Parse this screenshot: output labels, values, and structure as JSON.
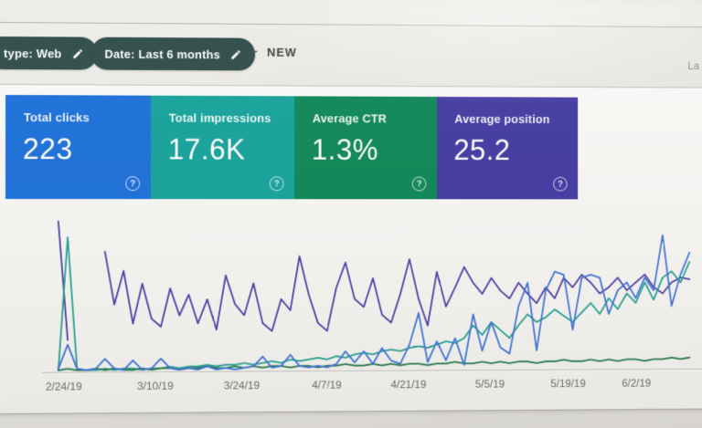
{
  "filter_bar": {
    "chips": [
      {
        "label": "type: Web",
        "icon": "pencil-icon"
      },
      {
        "label": "Date: Last 6 months",
        "icon": "pencil-icon"
      }
    ],
    "new_button": {
      "label": "NEW"
    },
    "right_text": "La"
  },
  "icons": {
    "help_glyph": "?",
    "plus_glyph": "+"
  },
  "metric_cards": [
    {
      "label": "Total clicks",
      "value": "223",
      "color": "#1a6fd8"
    },
    {
      "label": "Total impressions",
      "value": "17.6K",
      "color": "#12a29a"
    },
    {
      "label": "Average CTR",
      "value": "1.3%",
      "color": "#0c8656"
    },
    {
      "label": "Average position",
      "value": "25.2",
      "color": "#4238a2"
    }
  ],
  "chart_data": {
    "type": "line",
    "x_unit": "date (daily samples over last 6 months; ticks every 14 days)",
    "x_tick_labels": [
      "2/24/19",
      "3/10/19",
      "3/24/19",
      "4/7/19",
      "4/21/19",
      "5/5/19",
      "5/19/19",
      "6/2/19"
    ],
    "ylim": [
      0,
      100
    ],
    "values_unit": "relative height, % of plot (chart displays no y-axis)",
    "grid": false,
    "legend_position": "none (series colors match the metric cards)",
    "series": [
      {
        "name": "Average position",
        "color": "#4d3da6",
        "values": [
          94,
          20,
          null,
          null,
          null,
          75,
          42,
          63,
          30,
          55,
          33,
          28,
          52,
          35,
          48,
          30,
          45,
          26,
          60,
          42,
          35,
          55,
          30,
          25,
          45,
          38,
          72,
          48,
          30,
          25,
          52,
          68,
          45,
          40,
          58,
          35,
          30,
          48,
          70,
          45,
          28,
          62,
          40,
          52,
          65,
          55,
          48,
          58,
          50,
          45,
          55,
          48,
          42,
          52,
          45,
          58,
          52,
          60,
          55,
          48,
          52,
          58,
          50,
          55,
          60,
          52,
          48,
          55,
          58,
          57
        ]
      },
      {
        "name": "Total impressions",
        "color": "#27a193",
        "values": [
          1,
          84,
          2,
          1,
          1,
          2,
          1,
          2,
          2,
          1,
          2,
          2,
          3,
          2,
          3,
          3,
          4,
          3,
          4,
          4,
          5,
          4,
          5,
          6,
          5,
          7,
          6,
          7,
          8,
          7,
          9,
          8,
          10,
          11,
          10,
          12,
          13,
          12,
          14,
          15,
          14,
          16,
          18,
          17,
          20,
          28,
          22,
          30,
          25,
          20,
          28,
          35,
          30,
          33,
          38,
          34,
          30,
          36,
          42,
          35,
          45,
          38,
          48,
          42,
          55,
          44,
          58,
          62,
          55,
          68
        ]
      },
      {
        "name": "Average CTR",
        "color": "#267a4c",
        "values": [
          1,
          2,
          1,
          1,
          2,
          1,
          2,
          1,
          1,
          2,
          1,
          2,
          2,
          1,
          2,
          2,
          3,
          2,
          2,
          3,
          2,
          3,
          2,
          3,
          3,
          2,
          3,
          3,
          2,
          3,
          3,
          4,
          3,
          3,
          4,
          3,
          4,
          3,
          4,
          4,
          3,
          4,
          4,
          5,
          4,
          4,
          5,
          4,
          5,
          4,
          5,
          5,
          4,
          5,
          5,
          6,
          5,
          5,
          6,
          5,
          6,
          5,
          6,
          6,
          5,
          6,
          6,
          7,
          6,
          7
        ]
      },
      {
        "name": "Total clicks",
        "color": "#3f74d9",
        "values": [
          2,
          17,
          2,
          1,
          2,
          8,
          2,
          1,
          7,
          1,
          2,
          8,
          2,
          1,
          2,
          1,
          3,
          1,
          2,
          1,
          2,
          3,
          9,
          2,
          3,
          10,
          3,
          2,
          3,
          2,
          4,
          12,
          5,
          12,
          4,
          14,
          6,
          4,
          16,
          36,
          5,
          18,
          6,
          20,
          3,
          35,
          12,
          30,
          14,
          10,
          40,
          55,
          12,
          50,
          62,
          60,
          25,
          58,
          60,
          58,
          35,
          50,
          55,
          45,
          58,
          50,
          85,
          40,
          60,
          74
        ]
      }
    ]
  }
}
